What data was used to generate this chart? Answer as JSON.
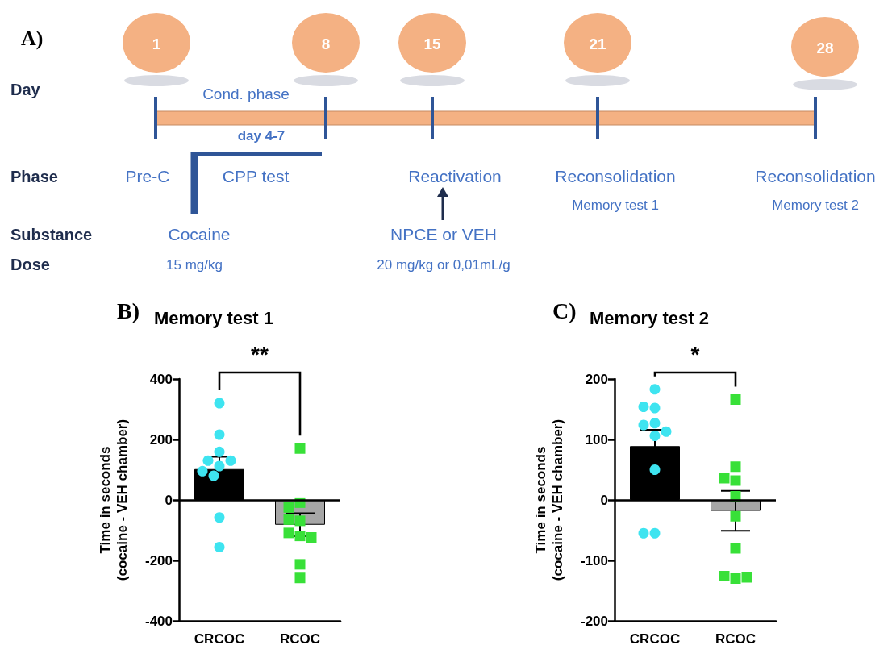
{
  "chart_data": [
    {
      "type": "other",
      "title": "A)",
      "annotations": [
        "1",
        "8",
        "15",
        "21",
        "28",
        "Day",
        "Phase",
        "Substance",
        "Dose",
        "Cond. phase",
        "day 4-7",
        "Pre-C",
        "CPP test",
        "Reactivation",
        "Reconsolidation",
        "Memory test 1",
        "Reconsolidation",
        "Memory test 2",
        "Cocaine",
        "15 mg/kg",
        "NPCE or VEH",
        "20 mg/kg or 0,01mL/g"
      ]
    },
    {
      "type": "bar",
      "title": "Memory test 1",
      "ylabel": "Time in seconds\n(cocaine - VEH chamber)",
      "annotations": [
        "B)",
        "**"
      ],
      "categories": [
        "CRCOC",
        "RCOC"
      ],
      "values": [
        102,
        -82
      ],
      "errors": [
        41,
        38
      ],
      "colors": [
        "#000000",
        "#a6a6a6"
      ],
      "ylim": [
        -400,
        400
      ],
      "yticks": [
        -400,
        -200,
        0,
        200,
        400
      ],
      "grid": false,
      "ref_lines": [
        {
          "axis": "y",
          "value": 0
        }
      ],
      "series": [
        {
          "type": "scatter",
          "color": "#3ee4f0",
          "marker": "circle",
          "x": [
            "CRCOC",
            "CRCOC",
            "CRCOC",
            "CRCOC",
            "CRCOC",
            "CRCOC",
            "CRCOC",
            "CRCOC",
            "CRCOC",
            "CRCOC"
          ],
          "values": [
            320,
            216,
            159,
            112,
            130,
            130,
            80,
            95,
            -58,
            -156
          ]
        },
        {
          "type": "scatter",
          "color": "#38e038",
          "marker": "square",
          "x": [
            "RCOC",
            "RCOC",
            "RCOC",
            "RCOC",
            "RCOC",
            "RCOC",
            "RCOC",
            "RCOC",
            "RCOC",
            "RCOC"
          ],
          "values": [
            170,
            -9,
            -25,
            -69,
            -65,
            -119,
            -109,
            -124,
            -213,
            -258
          ]
        }
      ]
    },
    {
      "type": "bar",
      "title": "Memory test 2",
      "ylabel": "Time in seconds\n(cocaine - VEH chamber)",
      "annotations": [
        "C)",
        "*"
      ],
      "categories": [
        "CRCOC",
        "RCOC"
      ],
      "values": [
        89,
        -18
      ],
      "errors": [
        27,
        33
      ],
      "colors": [
        "#000000",
        "#a6a6a6"
      ],
      "ylim": [
        -200,
        200
      ],
      "yticks": [
        -200,
        -100,
        0,
        100,
        200
      ],
      "grid": false,
      "ref_lines": [
        {
          "axis": "y",
          "value": 0
        }
      ],
      "series": [
        {
          "type": "scatter",
          "color": "#3ee4f0",
          "marker": "circle",
          "x": [
            "CRCOC",
            "CRCOC",
            "CRCOC",
            "CRCOC",
            "CRCOC",
            "CRCOC",
            "CRCOC",
            "CRCOC",
            "CRCOC",
            "CRCOC"
          ],
          "values": [
            183,
            152,
            154,
            127,
            124,
            113,
            106,
            50,
            -55,
            -55
          ]
        },
        {
          "type": "scatter",
          "color": "#38e038",
          "marker": "square",
          "x": [
            "RCOC",
            "RCOC",
            "RCOC",
            "RCOC",
            "RCOC",
            "RCOC",
            "RCOC",
            "RCOC",
            "RCOC",
            "RCOC"
          ],
          "values": [
            166,
            55,
            32,
            36,
            6,
            -27,
            -80,
            -130,
            -126,
            -128
          ]
        }
      ]
    }
  ]
}
